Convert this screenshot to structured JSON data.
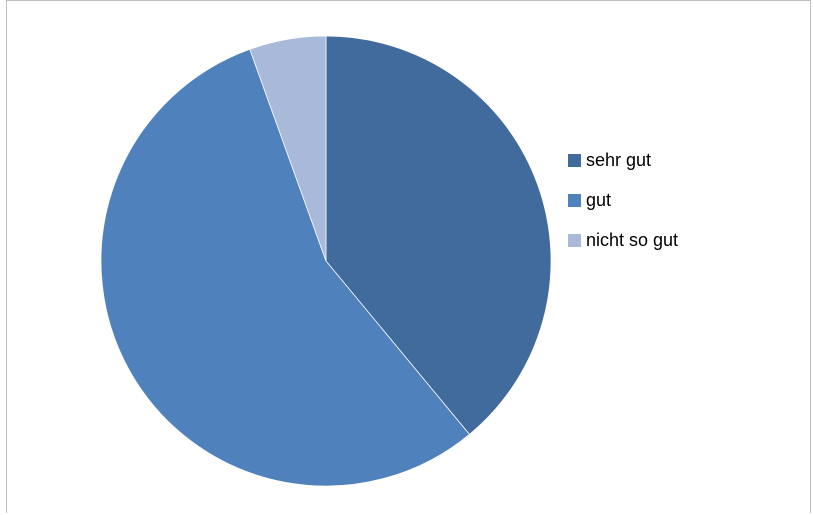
{
  "chart_data": {
    "type": "pie",
    "title": "",
    "slices": [
      {
        "label": "sehr gut",
        "value": 39,
        "color": "#416A9D"
      },
      {
        "label": "gut",
        "value": 55.5,
        "color": "#4F81BD"
      },
      {
        "label": "nicht so gut",
        "value": 5.5,
        "color": "#A9B9D9"
      }
    ],
    "start_angle_deg": 0,
    "direction": "clockwise",
    "legend_position": "right"
  }
}
